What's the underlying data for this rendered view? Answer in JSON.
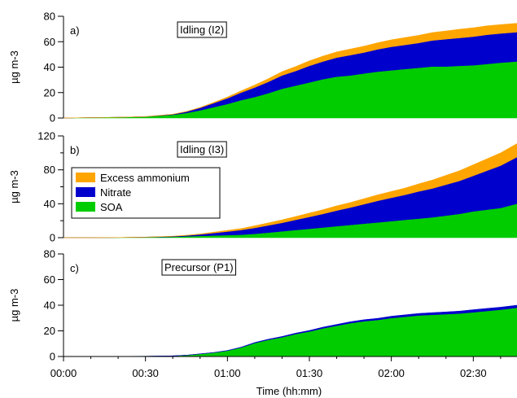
{
  "colors": {
    "Excess ammonium": "#ffa500",
    "Nitrate": "#0000cc",
    "SOA": "#00cc00"
  },
  "xaxis": {
    "label": "Time (hh:mm)",
    "unit": "minutes",
    "range": [
      0,
      166
    ],
    "ticks": [
      {
        "v": 0,
        "label": "00:00"
      },
      {
        "v": 30,
        "label": "00:30"
      },
      {
        "v": 60,
        "label": "01:00"
      },
      {
        "v": 90,
        "label": "01:30"
      },
      {
        "v": 120,
        "label": "02:00"
      },
      {
        "v": 150,
        "label": "02:30"
      }
    ]
  },
  "legend": {
    "placement": "left, middle panel",
    "entries": [
      "Excess ammonium",
      "Nitrate",
      "SOA"
    ]
  },
  "chart_data": [
    {
      "type": "area",
      "panel_label": "a)",
      "title": "Idling (I2)",
      "ylabel": "µg m-3",
      "ylim": [
        0,
        80
      ],
      "yticks": [
        0,
        20,
        40,
        60,
        80
      ],
      "x": [
        0,
        10,
        20,
        30,
        40,
        45,
        50,
        55,
        60,
        65,
        70,
        75,
        80,
        85,
        90,
        95,
        100,
        105,
        110,
        115,
        120,
        125,
        130,
        135,
        140,
        145,
        150,
        155,
        160,
        166
      ],
      "series": [
        {
          "name": "SOA",
          "values": [
            0,
            0.3,
            0.6,
            1,
            2.5,
            4,
            6,
            8.5,
            11,
            14,
            16.5,
            19.5,
            23,
            25.5,
            28,
            30.5,
            32.5,
            33.5,
            35,
            36.5,
            37.5,
            38.5,
            39.5,
            40.5,
            40.5,
            41,
            41.5,
            42.5,
            43.5,
            44.5
          ]
        },
        {
          "name": "Nitrate",
          "values": [
            0,
            0,
            0,
            0.1,
            0.4,
            1,
            2,
            3.2,
            4.5,
            6,
            7.5,
            9,
            10.5,
            11.5,
            13,
            14,
            15,
            16,
            16.5,
            17.5,
            18.5,
            19,
            19.5,
            20.5,
            21.5,
            22,
            22.5,
            23,
            23,
            23
          ]
        },
        {
          "name": "Excess ammonium",
          "values": [
            0,
            0,
            0,
            0,
            0.1,
            0.2,
            0.4,
            0.6,
            1,
            1.4,
            2,
            2.5,
            3,
            3.5,
            4,
            4.2,
            4.5,
            4.8,
            5,
            5.2,
            5.5,
            5.8,
            6,
            6.2,
            6.5,
            6.8,
            7,
            7,
            7,
            7
          ]
        }
      ]
    },
    {
      "type": "area",
      "panel_label": "b)",
      "title": "Idling (I3)",
      "ylabel": "µg m-3",
      "ylim": [
        0,
        120
      ],
      "yticks": [
        0,
        40,
        80,
        120
      ],
      "minor_yticks": [
        20,
        60,
        100
      ],
      "x": [
        0,
        10,
        20,
        30,
        40,
        45,
        50,
        55,
        60,
        65,
        70,
        75,
        80,
        85,
        90,
        95,
        100,
        105,
        110,
        115,
        120,
        125,
        130,
        135,
        140,
        145,
        150,
        155,
        160,
        166
      ],
      "series": [
        {
          "name": "SOA",
          "values": [
            0,
            0,
            0.2,
            0.5,
            1,
            1.5,
            2,
            2.5,
            3,
            3.5,
            4.5,
            6,
            7.5,
            9,
            10.5,
            12,
            13.5,
            15,
            16.5,
            18,
            19.5,
            21,
            22.5,
            24,
            26,
            28,
            31,
            33,
            35,
            40
          ]
        },
        {
          "name": "Nitrate",
          "values": [
            0,
            0,
            0,
            0.2,
            0.5,
            1,
            1.8,
            3,
            4.2,
            5.5,
            7,
            8.5,
            10,
            12,
            14,
            16,
            18.5,
            20.5,
            23,
            25.5,
            27.5,
            29.5,
            32,
            34,
            36.5,
            39,
            42,
            46,
            50,
            55
          ]
        },
        {
          "name": "Excess ammonium",
          "values": [
            0,
            0,
            0,
            0,
            0.2,
            0.4,
            0.6,
            1,
            1.4,
            1.8,
            2.5,
            3,
            3.5,
            4,
            4.5,
            5,
            5.5,
            6,
            6.5,
            7,
            7.5,
            8,
            9,
            10,
            11,
            12,
            13,
            14,
            15,
            16
          ]
        }
      ]
    },
    {
      "type": "area",
      "panel_label": "c)",
      "title": "Precursor (P1)",
      "ylabel": "µg m-3",
      "ylim": [
        0,
        80
      ],
      "yticks": [
        0,
        20,
        40,
        60,
        80
      ],
      "x": [
        0,
        10,
        20,
        30,
        40,
        45,
        50,
        55,
        60,
        65,
        70,
        75,
        80,
        85,
        90,
        95,
        100,
        105,
        110,
        115,
        120,
        125,
        130,
        135,
        140,
        145,
        150,
        155,
        160,
        166
      ],
      "series": [
        {
          "name": "SOA",
          "values": [
            0,
            0,
            0.1,
            0.2,
            0.5,
            1,
            2,
            3,
            4.5,
            7,
            10.5,
            13,
            15,
            17.5,
            19.5,
            22,
            24,
            26,
            27.5,
            28.5,
            30,
            31,
            32,
            32.5,
            33,
            33.5,
            34.5,
            35.5,
            36.5,
            38
          ]
        },
        {
          "name": "Nitrate",
          "values": [
            0,
            0,
            0,
            0,
            0,
            0,
            0.1,
            0.1,
            0.2,
            0.3,
            0.4,
            0.5,
            0.6,
            0.7,
            0.8,
            0.9,
            1,
            1.1,
            1.2,
            1.3,
            1.4,
            1.5,
            1.6,
            1.7,
            1.8,
            1.9,
            2,
            2,
            2,
            2
          ]
        }
      ]
    }
  ]
}
